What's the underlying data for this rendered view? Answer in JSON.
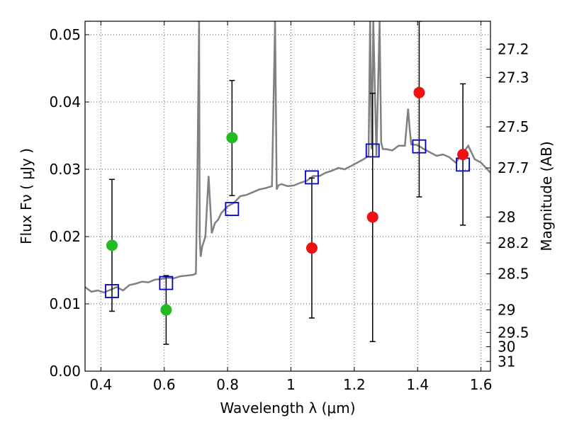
{
  "chart_data": {
    "type": "scatter",
    "xlabel": "Wavelength  λ (μm)",
    "ylabel": "Flux  Fν  ( μJy )",
    "ylabel_right": "Magnitude (AB)",
    "xlim": [
      0.35,
      1.63
    ],
    "ylim": [
      0.0,
      0.052
    ],
    "grid": true,
    "x_ticks": [
      {
        "value": 0.4,
        "label": "0.4"
      },
      {
        "value": 0.6,
        "label": "0.6"
      },
      {
        "value": 0.8,
        "label": "0.8"
      },
      {
        "value": 1.0,
        "label": "1"
      },
      {
        "value": 1.2,
        "label": "1.2"
      },
      {
        "value": 1.4,
        "label": "1.4"
      },
      {
        "value": 1.6,
        "label": "1.6"
      }
    ],
    "y_ticks": [
      {
        "value": 0.0,
        "label": "0.00"
      },
      {
        "value": 0.01,
        "label": "0.01"
      },
      {
        "value": 0.02,
        "label": "0.02"
      },
      {
        "value": 0.03,
        "label": "0.03"
      },
      {
        "value": 0.04,
        "label": "0.04"
      },
      {
        "value": 0.05,
        "label": "0.05"
      }
    ],
    "right_ticks": [
      {
        "mag": 27.2,
        "label": "27.2"
      },
      {
        "mag": 27.3,
        "label": "27.3"
      },
      {
        "mag": 27.5,
        "label": "27.5"
      },
      {
        "mag": 27.7,
        "label": "27.7"
      },
      {
        "mag": 28.0,
        "label": "28"
      },
      {
        "mag": 28.2,
        "label": "28.2"
      },
      {
        "mag": 28.5,
        "label": "28.5"
      },
      {
        "mag": 29.0,
        "label": "29"
      },
      {
        "mag": 29.5,
        "label": "29.5"
      },
      {
        "mag": 30.0,
        "label": "30"
      },
      {
        "mag": 31.0,
        "label": "31"
      }
    ],
    "colors": {
      "spectrum": "#808080",
      "green_points": "#22bb22",
      "red_points": "#ee1111",
      "model_boxes": "#0000cc",
      "errorbar": "#000000",
      "grid": "#555555"
    },
    "spectrum": {
      "x": [
        0.35,
        0.37,
        0.39,
        0.41,
        0.43,
        0.45,
        0.47,
        0.49,
        0.51,
        0.53,
        0.55,
        0.57,
        0.59,
        0.61,
        0.63,
        0.65,
        0.67,
        0.69,
        0.7,
        0.705,
        0.71,
        0.712,
        0.715,
        0.72,
        0.73,
        0.74,
        0.75,
        0.76,
        0.77,
        0.78,
        0.79,
        0.8,
        0.82,
        0.84,
        0.86,
        0.88,
        0.9,
        0.92,
        0.94,
        0.95,
        0.955,
        0.96,
        0.97,
        0.99,
        1.01,
        1.03,
        1.05,
        1.07,
        1.09,
        1.11,
        1.13,
        1.15,
        1.17,
        1.19,
        1.21,
        1.23,
        1.245,
        1.25,
        1.255,
        1.26,
        1.27,
        1.28,
        1.285,
        1.29,
        1.3,
        1.32,
        1.34,
        1.36,
        1.37,
        1.375,
        1.38,
        1.4,
        1.42,
        1.44,
        1.46,
        1.48,
        1.5,
        1.52,
        1.54,
        1.56,
        1.58,
        1.6,
        1.63
      ],
      "y": [
        0.0125,
        0.0118,
        0.012,
        0.0117,
        0.0121,
        0.0125,
        0.012,
        0.0128,
        0.013,
        0.0133,
        0.0132,
        0.0136,
        0.0137,
        0.0139,
        0.0138,
        0.0141,
        0.0142,
        0.0143,
        0.0145,
        0.03,
        0.052,
        0.02,
        0.017,
        0.0185,
        0.02,
        0.029,
        0.0205,
        0.022,
        0.0225,
        0.0235,
        0.024,
        0.0245,
        0.025,
        0.026,
        0.0262,
        0.0266,
        0.027,
        0.0272,
        0.0275,
        0.052,
        0.027,
        0.0276,
        0.0278,
        0.0275,
        0.0276,
        0.028,
        0.0283,
        0.029,
        0.029,
        0.0295,
        0.0298,
        0.0302,
        0.03,
        0.0305,
        0.031,
        0.0315,
        0.032,
        0.052,
        0.033,
        0.052,
        0.032,
        0.052,
        0.034,
        0.033,
        0.033,
        0.0328,
        0.0335,
        0.0335,
        0.039,
        0.036,
        0.0337,
        0.0336,
        0.033,
        0.0325,
        0.032,
        0.0322,
        0.0318,
        0.031,
        0.0322,
        0.0335,
        0.0315,
        0.031,
        0.0295
      ]
    },
    "model_points": [
      {
        "x": 0.435,
        "y": 0.0119
      },
      {
        "x": 0.606,
        "y": 0.0131
      },
      {
        "x": 0.814,
        "y": 0.0241
      },
      {
        "x": 1.066,
        "y": 0.0288
      },
      {
        "x": 1.258,
        "y": 0.0328
      },
      {
        "x": 1.405,
        "y": 0.0334
      },
      {
        "x": 1.543,
        "y": 0.0307
      }
    ],
    "green_points": [
      {
        "x": 0.435,
        "y": 0.0187,
        "err_low": 0.0089,
        "err_high": 0.0285
      },
      {
        "x": 0.606,
        "y": 0.0091,
        "err_low": 0.004,
        "err_high": 0.0142
      },
      {
        "x": 0.814,
        "y": 0.0347,
        "err_low": 0.0261,
        "err_high": 0.0432
      }
    ],
    "red_points": [
      {
        "x": 1.066,
        "y": 0.0183,
        "err_low": 0.0079,
        "err_high": 0.0287
      },
      {
        "x": 1.258,
        "y": 0.0229,
        "err_low": 0.0044,
        "err_high": 0.0413
      },
      {
        "x": 1.405,
        "y": 0.0414,
        "err_low": 0.0259,
        "err_high": 0.052
      },
      {
        "x": 1.543,
        "y": 0.0322,
        "err_low": 0.0217,
        "err_high": 0.0427
      }
    ]
  }
}
